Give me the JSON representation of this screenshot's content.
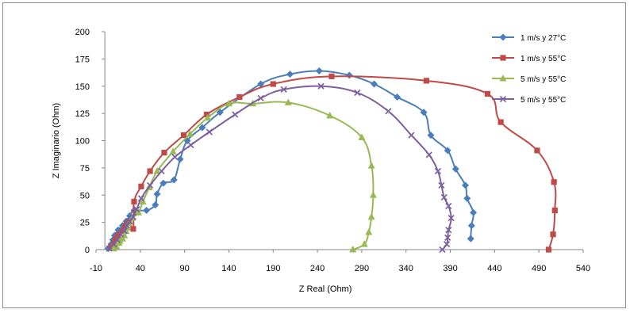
{
  "chart_data": {
    "type": "scatter",
    "title": "",
    "xlabel": "Z Real (Ohm)",
    "ylabel": "Z Imaginario (Ohm)",
    "xlim": [
      -10,
      540
    ],
    "ylim": [
      0,
      200
    ],
    "x_ticks": [
      "-10",
      "40",
      "90",
      "140",
      "190",
      "240",
      "290",
      "340",
      "390",
      "440",
      "490",
      "540"
    ],
    "y_ticks": [
      "0",
      "25",
      "50",
      "75",
      "100",
      "125",
      "150",
      "175",
      "200"
    ],
    "grid": false,
    "legend_position": "right",
    "series": [
      {
        "name": "1 m/s y 27°C",
        "color": "#4a7ebb",
        "marker": "diamond",
        "points": [
          [
            4,
            1
          ],
          [
            7,
            5
          ],
          [
            9,
            9
          ],
          [
            11,
            13
          ],
          [
            15,
            18
          ],
          [
            20,
            22
          ],
          [
            24,
            26
          ],
          [
            28,
            31
          ],
          [
            33,
            36
          ],
          [
            47,
            36
          ],
          [
            57,
            41
          ],
          [
            59,
            51
          ],
          [
            66,
            61
          ],
          [
            78,
            64
          ],
          [
            85,
            83
          ],
          [
            93,
            100
          ],
          [
            110,
            112
          ],
          [
            130,
            126
          ],
          [
            176,
            152
          ],
          [
            209,
            161
          ],
          [
            242,
            164
          ],
          [
            276,
            160
          ],
          [
            304,
            152
          ],
          [
            330,
            140
          ],
          [
            360,
            126
          ],
          [
            368,
            105
          ],
          [
            387,
            91
          ],
          [
            396,
            74
          ],
          [
            407,
            59
          ],
          [
            409,
            47
          ],
          [
            416,
            34
          ],
          [
            414,
            22
          ],
          [
            413,
            10
          ]
        ]
      },
      {
        "name": "1 m/s y 55°C",
        "color": "#be4b48",
        "marker": "square",
        "points": [
          [
            7,
            2
          ],
          [
            10,
            6
          ],
          [
            12,
            10
          ],
          [
            15,
            13
          ],
          [
            20,
            17
          ],
          [
            23,
            22
          ],
          [
            27,
            26
          ],
          [
            32,
            19
          ],
          [
            33,
            44
          ],
          [
            41,
            58
          ],
          [
            51,
            72
          ],
          [
            67,
            89
          ],
          [
            89,
            105
          ],
          [
            115,
            124
          ],
          [
            152,
            140
          ],
          [
            190,
            152
          ],
          [
            256,
            159
          ],
          [
            363,
            155
          ],
          [
            432,
            143
          ],
          [
            447,
            117
          ],
          [
            488,
            91
          ],
          [
            507,
            62
          ],
          [
            508,
            36
          ],
          [
            506,
            14
          ],
          [
            501,
            0
          ]
        ]
      },
      {
        "name": "5 m/s y 55°C",
        "color": "#98b954",
        "marker": "triangle",
        "points": [
          [
            10,
            1
          ],
          [
            13,
            3
          ],
          [
            16,
            6
          ],
          [
            17,
            8
          ],
          [
            20,
            10
          ],
          [
            22,
            13
          ],
          [
            24,
            17
          ],
          [
            25,
            20
          ],
          [
            27,
            24
          ],
          [
            31,
            29
          ],
          [
            38,
            34
          ],
          [
            43,
            44
          ],
          [
            50,
            57
          ],
          [
            59,
            72
          ],
          [
            77,
            90
          ],
          [
            96,
            106
          ],
          [
            116,
            121
          ],
          [
            140,
            134
          ],
          [
            167,
            134
          ],
          [
            207,
            135
          ],
          [
            254,
            123
          ],
          [
            290,
            103
          ],
          [
            301,
            77
          ],
          [
            303,
            50
          ],
          [
            301,
            30
          ],
          [
            298,
            16
          ],
          [
            293,
            5
          ],
          [
            280,
            0
          ]
        ]
      },
      {
        "name": "5 m/s y 55°C",
        "color": "#7d5fa0",
        "marker": "x",
        "points": [
          [
            5,
            1
          ],
          [
            10,
            5
          ],
          [
            14,
            9
          ],
          [
            18,
            14
          ],
          [
            22,
            17
          ],
          [
            25,
            22
          ],
          [
            28,
            26
          ],
          [
            32,
            30
          ],
          [
            36,
            37
          ],
          [
            41,
            47
          ],
          [
            51,
            59
          ],
          [
            64,
            72
          ],
          [
            79,
            85
          ],
          [
            97,
            96
          ],
          [
            118,
            108
          ],
          [
            147,
            124
          ],
          [
            176,
            139
          ],
          [
            202,
            147
          ],
          [
            244,
            150
          ],
          [
            285,
            144
          ],
          [
            320,
            127
          ],
          [
            346,
            105
          ],
          [
            366,
            87
          ],
          [
            376,
            72
          ],
          [
            380,
            59
          ],
          [
            383,
            48
          ],
          [
            388,
            40
          ],
          [
            391,
            29
          ],
          [
            388,
            18
          ],
          [
            387,
            11
          ],
          [
            386,
            5
          ],
          [
            381,
            0
          ]
        ]
      }
    ]
  }
}
